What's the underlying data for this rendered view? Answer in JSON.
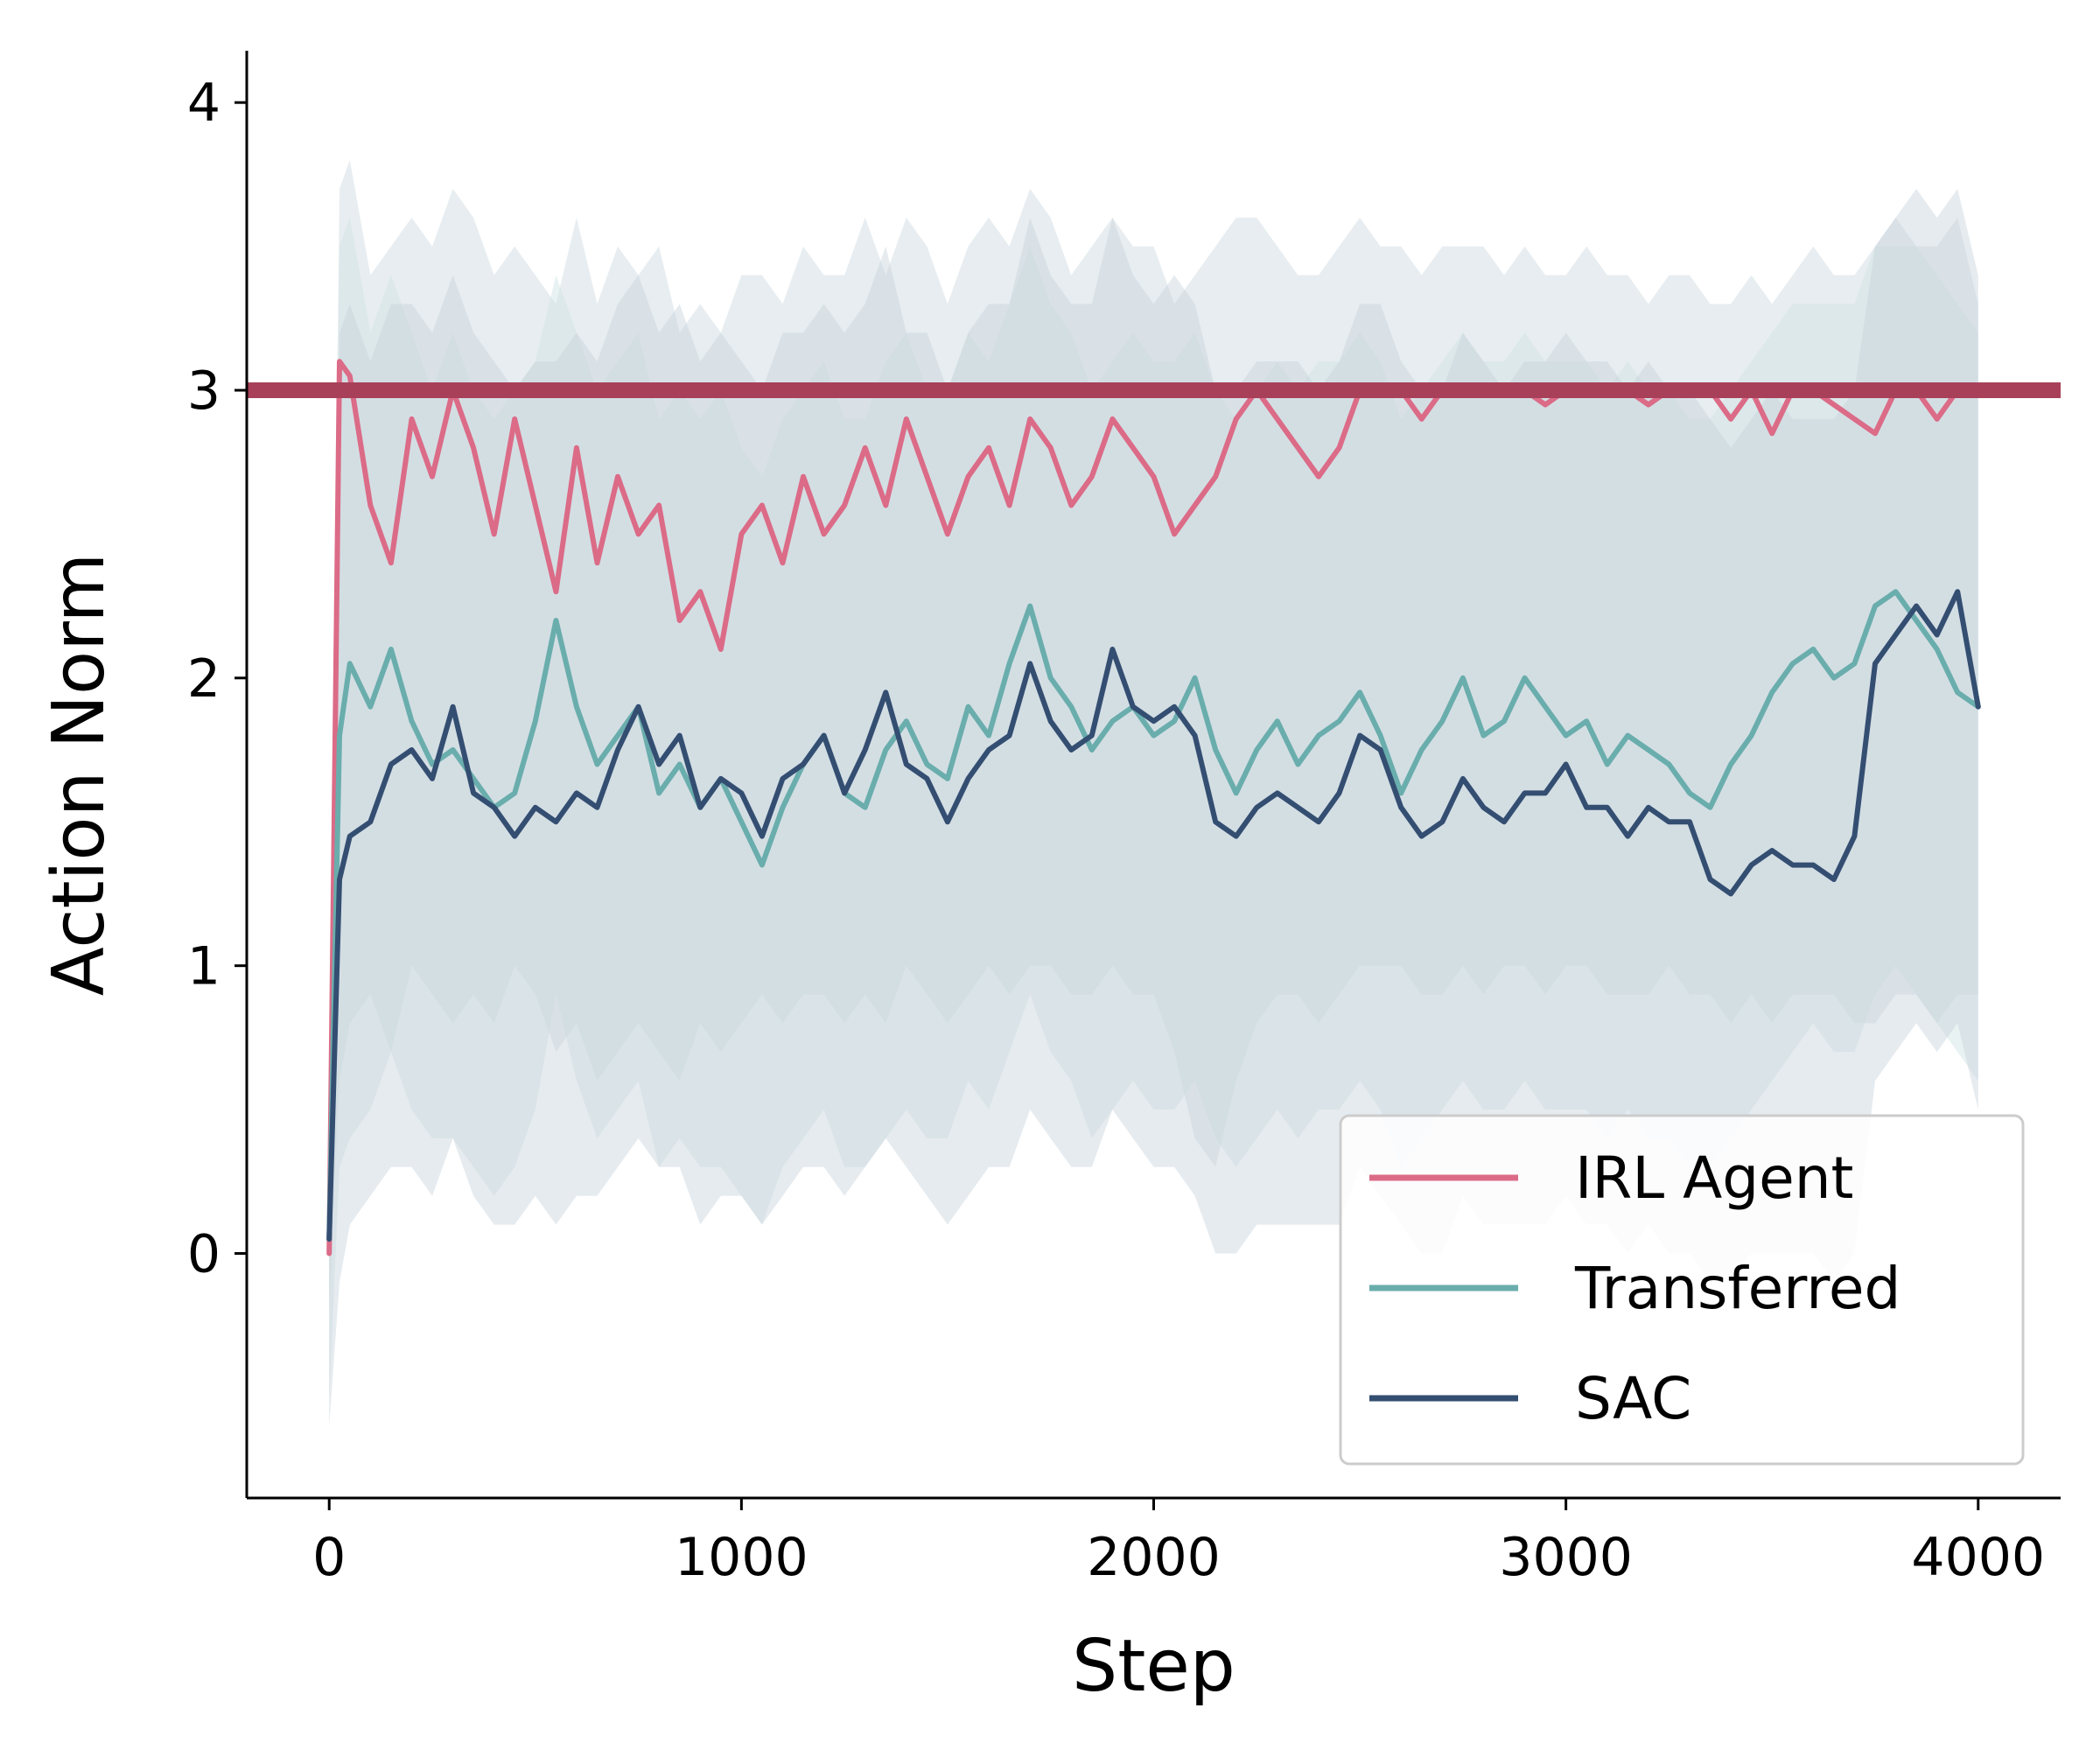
{
  "chart_data": {
    "type": "line",
    "xlabel": "Step",
    "ylabel": "Action Norm",
    "xlim": [
      -200,
      4200
    ],
    "ylim": [
      -0.85,
      4.18
    ],
    "xticks": [
      0,
      1000,
      2000,
      3000,
      4000
    ],
    "xtick_labels": [
      "0",
      "1000",
      "2000",
      "3000",
      "4000"
    ],
    "yticks": [
      0,
      1,
      2,
      3,
      4
    ],
    "ytick_labels": [
      "0",
      "1",
      "2",
      "3",
      "4"
    ],
    "grid": false,
    "legend_position": "lower-right",
    "reference_line": {
      "y": 3.0,
      "color": "#a8405a"
    },
    "x": [
      0,
      25,
      50,
      100,
      150,
      200,
      250,
      300,
      350,
      400,
      450,
      500,
      550,
      600,
      650,
      700,
      750,
      800,
      850,
      900,
      950,
      1000,
      1050,
      1100,
      1150,
      1200,
      1250,
      1300,
      1350,
      1400,
      1450,
      1500,
      1550,
      1600,
      1650,
      1700,
      1750,
      1800,
      1850,
      1900,
      1950,
      2000,
      2050,
      2100,
      2150,
      2200,
      2250,
      2300,
      2350,
      2400,
      2450,
      2500,
      2550,
      2600,
      2650,
      2700,
      2750,
      2800,
      2850,
      2900,
      2950,
      3000,
      3050,
      3100,
      3150,
      3200,
      3250,
      3300,
      3350,
      3400,
      3450,
      3500,
      3550,
      3600,
      3650,
      3700,
      3750,
      3800,
      3850,
      3900,
      3950,
      4000
    ],
    "series": [
      {
        "name": "IRL Agent",
        "color": "#db6b87",
        "values": [
          0.0,
          3.1,
          3.05,
          2.6,
          2.4,
          2.9,
          2.7,
          3.0,
          2.8,
          2.5,
          2.9,
          2.6,
          2.3,
          2.8,
          2.4,
          2.7,
          2.5,
          2.6,
          2.2,
          2.3,
          2.1,
          2.5,
          2.6,
          2.4,
          2.7,
          2.5,
          2.6,
          2.8,
          2.6,
          2.9,
          2.7,
          2.5,
          2.7,
          2.8,
          2.6,
          2.9,
          2.8,
          2.6,
          2.7,
          2.9,
          2.8,
          2.7,
          2.5,
          2.6,
          2.7,
          2.9,
          3.0,
          2.9,
          2.8,
          2.7,
          2.8,
          3.0,
          3.0,
          3.0,
          2.9,
          3.0,
          3.0,
          3.0,
          3.0,
          3.0,
          2.95,
          3.0,
          3.0,
          3.0,
          3.0,
          2.95,
          3.0,
          3.0,
          3.0,
          2.9,
          3.0,
          2.85,
          3.0,
          3.0,
          2.95,
          2.9,
          2.85,
          3.0,
          3.0,
          2.9,
          3.0,
          3.0
        ]
      },
      {
        "name": "Transferred",
        "color": "#6aadad",
        "values": [
          0.05,
          1.8,
          2.05,
          1.9,
          2.1,
          1.85,
          1.7,
          1.75,
          1.65,
          1.55,
          1.6,
          1.85,
          2.2,
          1.9,
          1.7,
          1.8,
          1.9,
          1.6,
          1.7,
          1.55,
          1.65,
          1.5,
          1.35,
          1.55,
          1.7,
          1.8,
          1.6,
          1.55,
          1.75,
          1.85,
          1.7,
          1.65,
          1.9,
          1.8,
          2.05,
          2.25,
          2.0,
          1.9,
          1.75,
          1.85,
          1.9,
          1.8,
          1.85,
          2.0,
          1.75,
          1.6,
          1.75,
          1.85,
          1.7,
          1.8,
          1.85,
          1.95,
          1.8,
          1.6,
          1.75,
          1.85,
          2.0,
          1.8,
          1.85,
          2.0,
          1.9,
          1.8,
          1.85,
          1.7,
          1.8,
          1.75,
          1.7,
          1.6,
          1.55,
          1.7,
          1.8,
          1.95,
          2.05,
          2.1,
          2.0,
          2.05,
          2.25,
          2.3,
          2.2,
          2.1,
          1.95,
          1.9
        ]
      },
      {
        "name": "SAC",
        "color": "#344e72",
        "values": [
          0.05,
          1.3,
          1.45,
          1.5,
          1.7,
          1.75,
          1.65,
          1.9,
          1.6,
          1.55,
          1.45,
          1.55,
          1.5,
          1.6,
          1.55,
          1.75,
          1.9,
          1.7,
          1.8,
          1.55,
          1.65,
          1.6,
          1.45,
          1.65,
          1.7,
          1.8,
          1.6,
          1.75,
          1.95,
          1.7,
          1.65,
          1.5,
          1.65,
          1.75,
          1.8,
          2.05,
          1.85,
          1.75,
          1.8,
          2.1,
          1.9,
          1.85,
          1.9,
          1.8,
          1.5,
          1.45,
          1.55,
          1.6,
          1.55,
          1.5,
          1.6,
          1.8,
          1.75,
          1.55,
          1.45,
          1.5,
          1.65,
          1.55,
          1.5,
          1.6,
          1.6,
          1.7,
          1.55,
          1.55,
          1.45,
          1.55,
          1.5,
          1.5,
          1.3,
          1.25,
          1.35,
          1.4,
          1.35,
          1.35,
          1.3,
          1.45,
          2.05,
          2.15,
          2.25,
          2.15,
          2.3,
          1.9
        ]
      }
    ],
    "bands": [
      {
        "series": "IRL Agent",
        "upper": [
          0.7,
          3.7,
          3.8,
          3.4,
          3.5,
          3.6,
          3.5,
          3.7,
          3.6,
          3.4,
          3.5,
          3.4,
          3.3,
          3.6,
          3.3,
          3.5,
          3.4,
          3.5,
          3.2,
          3.3,
          3.2,
          3.4,
          3.4,
          3.3,
          3.5,
          3.4,
          3.4,
          3.6,
          3.4,
          3.6,
          3.5,
          3.3,
          3.5,
          3.6,
          3.5,
          3.7,
          3.6,
          3.4,
          3.5,
          3.6,
          3.5,
          3.5,
          3.3,
          3.4,
          3.5,
          3.6,
          3.6,
          3.5,
          3.4,
          3.4,
          3.5,
          3.6,
          3.5,
          3.5,
          3.4,
          3.5,
          3.5,
          3.5,
          3.4,
          3.5,
          3.4,
          3.4,
          3.5,
          3.4,
          3.4,
          3.3,
          3.4,
          3.4,
          3.3,
          3.3,
          3.4,
          3.3,
          3.4,
          3.5,
          3.4,
          3.4,
          3.5,
          3.6,
          3.5,
          3.5,
          3.6,
          3.3
        ],
        "lower": [
          -0.2,
          0.6,
          0.8,
          0.9,
          0.7,
          1.0,
          0.9,
          0.8,
          0.9,
          0.8,
          1.0,
          0.9,
          0.7,
          0.8,
          0.6,
          0.7,
          0.8,
          0.7,
          0.6,
          0.8,
          0.7,
          0.8,
          0.9,
          0.8,
          0.9,
          0.9,
          0.8,
          0.9,
          0.8,
          1.0,
          0.9,
          0.8,
          0.9,
          1.0,
          0.9,
          1.0,
          1.0,
          0.9,
          0.9,
          1.0,
          0.9,
          0.9,
          0.7,
          0.4,
          0.3,
          0.6,
          0.8,
          0.9,
          0.9,
          0.8,
          0.9,
          1.0,
          1.0,
          1.0,
          0.9,
          0.9,
          1.0,
          0.9,
          1.0,
          1.0,
          0.9,
          1.0,
          1.0,
          0.9,
          0.9,
          0.9,
          1.0,
          0.9,
          0.9,
          0.8,
          0.9,
          0.8,
          0.9,
          0.9,
          0.9,
          0.8,
          0.8,
          0.9,
          0.9,
          0.8,
          0.9,
          0.9
        ]
      },
      {
        "series": "Transferred",
        "upper": [
          0.6,
          3.5,
          3.6,
          3.2,
          3.4,
          3.2,
          3.0,
          3.2,
          3.0,
          2.9,
          3.0,
          3.1,
          3.4,
          3.2,
          3.0,
          3.1,
          3.2,
          2.9,
          3.0,
          2.9,
          3.0,
          2.8,
          2.7,
          2.9,
          3.0,
          3.1,
          2.9,
          2.9,
          3.1,
          3.2,
          3.0,
          3.0,
          3.2,
          3.1,
          3.3,
          3.5,
          3.3,
          3.2,
          3.0,
          3.1,
          3.2,
          3.1,
          3.1,
          3.2,
          3.0,
          2.9,
          3.0,
          3.1,
          3.0,
          3.1,
          3.1,
          3.2,
          3.1,
          2.9,
          3.0,
          3.1,
          3.2,
          3.1,
          3.1,
          3.2,
          3.1,
          3.1,
          3.1,
          3.0,
          3.1,
          3.0,
          3.0,
          2.9,
          2.9,
          3.0,
          3.1,
          3.2,
          3.3,
          3.3,
          3.3,
          3.3,
          3.5,
          3.5,
          3.5,
          3.4,
          3.3,
          3.2
        ],
        "lower": [
          -0.5,
          0.3,
          0.4,
          0.5,
          0.7,
          0.5,
          0.4,
          0.4,
          0.3,
          0.2,
          0.3,
          0.5,
          0.9,
          0.6,
          0.4,
          0.5,
          0.6,
          0.3,
          0.4,
          0.3,
          0.3,
          0.2,
          0.1,
          0.3,
          0.4,
          0.5,
          0.3,
          0.3,
          0.4,
          0.5,
          0.4,
          0.4,
          0.6,
          0.5,
          0.7,
          0.9,
          0.7,
          0.6,
          0.4,
          0.5,
          0.6,
          0.5,
          0.5,
          0.6,
          0.4,
          0.3,
          0.4,
          0.5,
          0.4,
          0.5,
          0.5,
          0.6,
          0.5,
          0.3,
          0.4,
          0.5,
          0.6,
          0.5,
          0.5,
          0.6,
          0.5,
          0.5,
          0.5,
          0.4,
          0.5,
          0.4,
          0.4,
          0.3,
          0.3,
          0.4,
          0.5,
          0.6,
          0.7,
          0.8,
          0.7,
          0.7,
          0.9,
          1.0,
          0.9,
          0.8,
          0.7,
          0.6
        ]
      },
      {
        "series": "SAC",
        "upper": [
          0.6,
          3.2,
          3.3,
          3.1,
          3.3,
          3.3,
          3.2,
          3.4,
          3.2,
          3.1,
          3.0,
          3.1,
          3.1,
          3.2,
          3.1,
          3.3,
          3.4,
          3.2,
          3.3,
          3.1,
          3.2,
          3.1,
          3.0,
          3.2,
          3.2,
          3.3,
          3.2,
          3.3,
          3.5,
          3.2,
          3.2,
          3.0,
          3.2,
          3.3,
          3.3,
          3.6,
          3.4,
          3.3,
          3.3,
          3.6,
          3.4,
          3.3,
          3.4,
          3.3,
          3.0,
          3.0,
          3.1,
          3.1,
          3.1,
          3.0,
          3.1,
          3.3,
          3.3,
          3.1,
          3.0,
          3.0,
          3.2,
          3.1,
          3.0,
          3.1,
          3.1,
          3.2,
          3.1,
          3.1,
          3.0,
          3.1,
          3.0,
          3.0,
          2.9,
          2.8,
          2.9,
          3.0,
          2.9,
          2.9,
          2.9,
          3.0,
          3.5,
          3.6,
          3.7,
          3.6,
          3.7,
          3.4
        ],
        "lower": [
          -0.6,
          -0.1,
          0.1,
          0.2,
          0.3,
          0.3,
          0.2,
          0.4,
          0.2,
          0.1,
          0.1,
          0.2,
          0.1,
          0.2,
          0.2,
          0.3,
          0.4,
          0.3,
          0.3,
          0.1,
          0.2,
          0.2,
          0.1,
          0.2,
          0.3,
          0.3,
          0.2,
          0.3,
          0.4,
          0.3,
          0.2,
          0.1,
          0.2,
          0.3,
          0.3,
          0.5,
          0.4,
          0.3,
          0.3,
          0.5,
          0.4,
          0.3,
          0.3,
          0.2,
          0.0,
          0.0,
          0.1,
          0.1,
          0.1,
          0.1,
          0.1,
          0.3,
          0.2,
          0.1,
          0.0,
          0.0,
          0.2,
          0.1,
          0.1,
          0.1,
          0.1,
          0.2,
          0.1,
          0.1,
          0.0,
          0.1,
          0.0,
          0.0,
          -0.1,
          -0.1,
          0.0,
          0.0,
          0.0,
          0.0,
          -0.1,
          0.0,
          0.6,
          0.7,
          0.8,
          0.7,
          0.8,
          0.5
        ]
      }
    ]
  }
}
